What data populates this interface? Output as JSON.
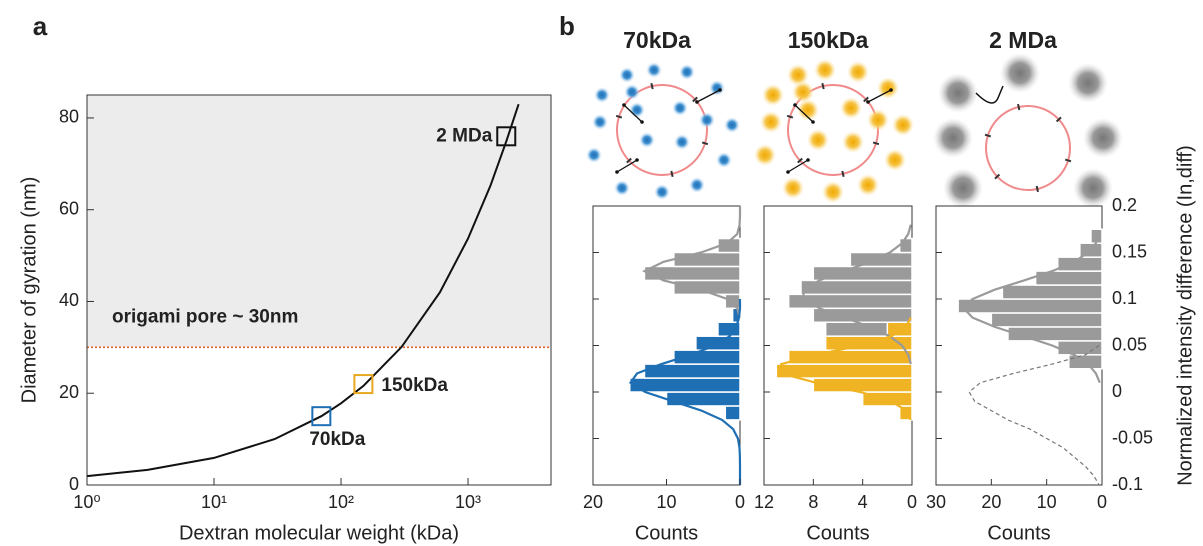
{
  "chart_data": [
    {
      "type": "line",
      "panel_label": "a",
      "xscale": "log",
      "xlabel": "Dextran molecular weight (kDa)",
      "ylabel": "Diameter of gyration (nm)",
      "xlim": [
        1,
        4500
      ],
      "ylim": [
        0,
        85
      ],
      "xticks": [
        {
          "value": 1,
          "label": "10⁰"
        },
        {
          "value": 10,
          "label": "10¹"
        },
        {
          "value": 100,
          "label": "10²"
        },
        {
          "value": 1000,
          "label": "10³"
        }
      ],
      "yticks": [
        0,
        20,
        40,
        60,
        80
      ],
      "curve": {
        "color": "#111111",
        "x": [
          1,
          3,
          10,
          30,
          70,
          100,
          150,
          300,
          600,
          1000,
          1500,
          2000,
          2500
        ],
        "y": [
          1.95,
          3.3,
          5.9,
          10.0,
          15.0,
          17.8,
          21.6,
          30.1,
          42.0,
          53.7,
          65.2,
          74.9,
          83.0
        ]
      },
      "threshold": {
        "label": "origami pore ~ 30nm",
        "value": 30,
        "color": "#e0622a"
      },
      "markers": [
        {
          "label": "70kDa",
          "x": 70,
          "y": 15,
          "color": "#1f6fb4"
        },
        {
          "label": "150kDa",
          "x": 150,
          "y": 22,
          "color": "#e8a922"
        },
        {
          "label": "2 MDa",
          "x": 2000,
          "y": 76,
          "color": "#111111"
        }
      ]
    },
    {
      "type": "histogram",
      "panel_label": "b",
      "title": "70kDa",
      "title_color": "#1f6fb4",
      "xlabel": "Counts",
      "xlim": [
        20,
        0
      ],
      "xticks": [
        20,
        10,
        0
      ],
      "ylim": [
        -0.1,
        0.2
      ],
      "series": [
        {
          "color": "#9a9a9a",
          "bins": [
            0.09,
            0.105,
            0.12,
            0.135,
            0.15,
            0.165
          ],
          "counts": [
            2,
            9,
            13,
            9,
            3
          ]
        },
        {
          "color": "#1f6fb4",
          "bins": [
            -0.03,
            -0.015,
            0,
            0.015,
            0.03,
            0.045,
            0.06,
            0.075,
            0.09
          ],
          "counts": [
            2,
            10,
            15,
            13,
            9,
            6,
            3,
            1
          ]
        }
      ],
      "fits": [
        {
          "color": "#9a9a9a",
          "dashed": false,
          "y": [
            0.08,
            0.09,
            0.1,
            0.11,
            0.12,
            0.13,
            0.14,
            0.15,
            0.16,
            0.17,
            0.18,
            0.19,
            0.2
          ],
          "counts": [
            0.05,
            0.37,
            1.76,
            5.3,
            10.4,
            13,
            10.4,
            5.3,
            1.76,
            0.37,
            0.05,
            0,
            0
          ]
        },
        {
          "color": "#1f6fb4",
          "dashed": false,
          "y": [
            -0.1,
            -0.09,
            -0.08,
            -0.07,
            -0.06,
            -0.05,
            -0.04,
            -0.03,
            -0.02,
            -0.01,
            0,
            0.01,
            0.02,
            0.03,
            0.04,
            0.05,
            0.06,
            0.07,
            0.08,
            0.09,
            0.1
          ],
          "counts": [
            0,
            0,
            0,
            0.01,
            0.07,
            0.28,
            0.92,
            2.43,
            5.24,
            9.1,
            12.9,
            14.9,
            14.0,
            10.7,
            6.7,
            3.4,
            1.4,
            0.5,
            0.13,
            0,
            0
          ]
        }
      ]
    },
    {
      "type": "histogram",
      "title": "150kDa",
      "title_color": "#e8a922",
      "xlabel": "Counts",
      "xlim": [
        12,
        0
      ],
      "xticks": [
        12,
        8,
        4,
        0
      ],
      "ylim": [
        -0.1,
        0.2
      ],
      "series": [
        {
          "color": "#9a9a9a",
          "bins": [
            0.06,
            0.075,
            0.09,
            0.105,
            0.12,
            0.135,
            0.15,
            0.165
          ],
          "counts": [
            7,
            8,
            10,
            9,
            8,
            5,
            1
          ]
        },
        {
          "color": "#f0b323",
          "bins": [
            -0.03,
            -0.015,
            0,
            0.015,
            0.03,
            0.045,
            0.06,
            0.075
          ],
          "counts": [
            1,
            4,
            8,
            11,
            10,
            7,
            2
          ]
        }
      ],
      "fits": [
        {
          "color": "#9a9a9a",
          "dashed": false,
          "y": [
            0.03,
            0.04,
            0.05,
            0.06,
            0.07,
            0.08,
            0.09,
            0.1,
            0.11,
            0.12,
            0.13,
            0.14,
            0.15,
            0.16,
            0.17,
            0.18
          ],
          "counts": [
            0.1,
            0.3,
            0.8,
            1.8,
            3.4,
            5.5,
            7.5,
            8.8,
            8.8,
            7.5,
            5.5,
            3.4,
            1.8,
            0.8,
            0.3,
            0.1
          ]
        },
        {
          "color": "#f0b323",
          "dashed": false,
          "y": [
            -0.03,
            -0.02,
            -0.01,
            0,
            0.01,
            0.02,
            0.03,
            0.04,
            0.05,
            0.06,
            0.07,
            0.08
          ],
          "counts": [
            0.1,
            0.48,
            1.66,
            4.2,
            7.8,
            10.6,
            10.6,
            7.8,
            4.2,
            1.66,
            0.48,
            0.1
          ]
        }
      ]
    },
    {
      "type": "histogram",
      "title": "2 MDa",
      "title_color": "#222222",
      "xlabel": "Counts",
      "ylabel": "Normalized intensity difference (In,diff)",
      "xlim": [
        30,
        0
      ],
      "xticks": [
        30,
        20,
        10,
        0
      ],
      "ylim": [
        -0.1,
        0.2
      ],
      "yticks": [
        -0.1,
        -0.05,
        0,
        0.05,
        0.1,
        0.15,
        0.2
      ],
      "series": [
        {
          "color": "#9a9a9a",
          "bins": [
            0.025,
            0.04,
            0.055,
            0.07,
            0.085,
            0.1,
            0.115,
            0.13,
            0.145,
            0.16,
            0.175
          ],
          "counts": [
            6,
            8,
            17,
            20,
            26,
            18,
            12,
            8,
            4,
            2
          ]
        }
      ],
      "fits": [
        {
          "color": "#9a9a9a",
          "dashed": false,
          "y": [
            0.01,
            0.02,
            0.03,
            0.04,
            0.05,
            0.06,
            0.07,
            0.08,
            0.09,
            0.1,
            0.11,
            0.12,
            0.13,
            0.14,
            0.15,
            0.16,
            0.17
          ],
          "counts": [
            0.4,
            1.1,
            2.5,
            5.0,
            9.0,
            14.1,
            19.4,
            23.4,
            25,
            23.4,
            19.4,
            14.1,
            9.0,
            5.0,
            2.5,
            1.1,
            0.4
          ]
        },
        {
          "color": "#777777",
          "dashed": true,
          "y": [
            0.05,
            0.04,
            0.03,
            0.02,
            0.01,
            0,
            -0.01,
            -0.02,
            -0.03,
            -0.04,
            -0.05,
            -0.06,
            -0.07,
            -0.08,
            -0.09,
            -0.1
          ],
          "counts": [
            0.5,
            3,
            9,
            16,
            22,
            24,
            23,
            20,
            17,
            13,
            10,
            7,
            5,
            3,
            1.5,
            0.5
          ]
        }
      ]
    }
  ]
}
